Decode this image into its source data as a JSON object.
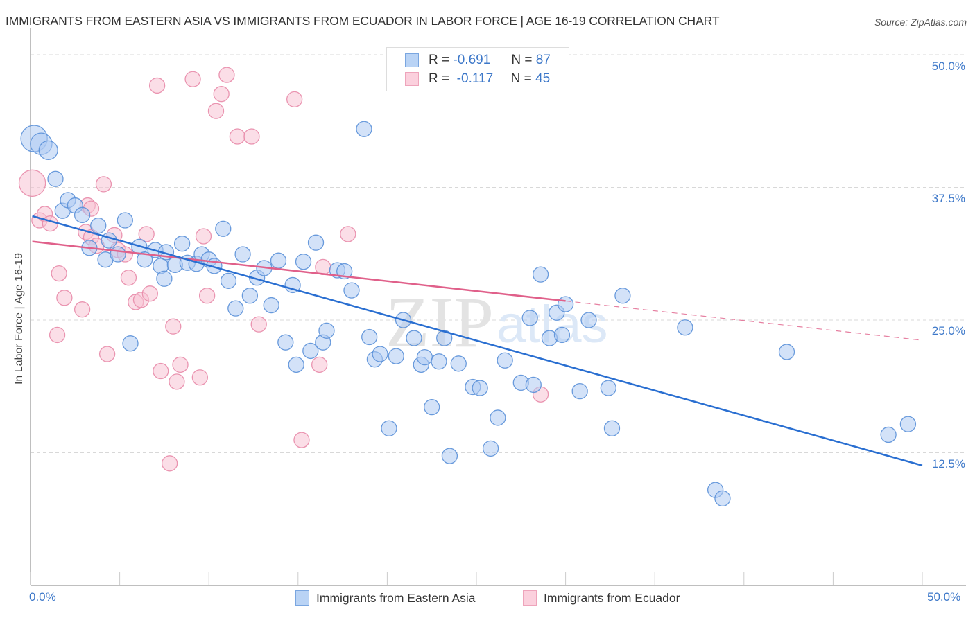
{
  "header": {
    "title": "IMMIGRANTS FROM EASTERN ASIA VS IMMIGRANTS FROM ECUADOR IN LABOR FORCE | AGE 16-19 CORRELATION CHART",
    "source": "Source: ZipAtlas.com"
  },
  "watermark": {
    "zip": "ZIP",
    "atlas": "atlas"
  },
  "colors": {
    "eastern_asia_fill": "#aecbf2",
    "eastern_asia_stroke": "#5a90d8",
    "eastern_asia_line": "#2a6fd1",
    "ecuador_fill": "#f8c3d3",
    "ecuador_stroke": "#e88aa8",
    "ecuador_line": "#e0608a",
    "tick_text": "#3d78c9"
  },
  "legend_top": {
    "rows": [
      {
        "r_label": "R =",
        "r_value": "-0.691",
        "n_label": "N =",
        "n_value": "87"
      },
      {
        "r_label": "R =",
        "r_value": "-0.117",
        "n_label": "N =",
        "n_value": "45"
      }
    ]
  },
  "chart_data": {
    "type": "scatter",
    "title": "IMMIGRANTS FROM EASTERN ASIA VS IMMIGRANTS FROM ECUADOR IN LABOR FORCE | AGE 16-19 CORRELATION CHART",
    "xlabel": "",
    "ylabel": "In Labor Force | Age 16-19",
    "xlim": [
      0,
      50
    ],
    "ylim": [
      0,
      50
    ],
    "x_tick_labels": [
      "0.0%",
      "50.0%"
    ],
    "y_ticks": [
      12.5,
      25.0,
      37.5,
      50.0
    ],
    "y_tick_labels": [
      "12.5%",
      "25.0%",
      "37.5%",
      "50.0%"
    ],
    "grid": "horizontal dashed",
    "legend": "bottom-center",
    "series": [
      {
        "name": "Immigrants from Eastern Asia",
        "R": -0.691,
        "N": 87,
        "trend": {
          "x0": 0.1,
          "y0": 34.8,
          "x1": 50.0,
          "y1": 11.3,
          "dashed_from": null
        },
        "points": [
          [
            0.2,
            42.1,
            3
          ],
          [
            0.6,
            41.6,
            2
          ],
          [
            1.0,
            41.0,
            1.5
          ],
          [
            1.4,
            38.3,
            1
          ],
          [
            1.8,
            35.3,
            1
          ],
          [
            2.1,
            36.3,
            1
          ],
          [
            2.5,
            35.8,
            1
          ],
          [
            2.9,
            34.9,
            1
          ],
          [
            3.3,
            31.8,
            1
          ],
          [
            3.8,
            33.9,
            1
          ],
          [
            4.2,
            30.7,
            1
          ],
          [
            4.4,
            32.5,
            1
          ],
          [
            4.9,
            31.2,
            1
          ],
          [
            5.3,
            34.4,
            1
          ],
          [
            5.6,
            22.8,
            1
          ],
          [
            6.1,
            31.9,
            1
          ],
          [
            6.4,
            30.7,
            1
          ],
          [
            7.0,
            31.6,
            1
          ],
          [
            7.3,
            30.1,
            1
          ],
          [
            7.6,
            31.4,
            1
          ],
          [
            7.5,
            28.9,
            1
          ],
          [
            8.1,
            30.2,
            1
          ],
          [
            8.5,
            32.2,
            1
          ],
          [
            8.8,
            30.4,
            1
          ],
          [
            9.3,
            30.3,
            1
          ],
          [
            9.6,
            31.2,
            1
          ],
          [
            10.0,
            30.7,
            1
          ],
          [
            10.3,
            30.1,
            1
          ],
          [
            10.8,
            33.6,
            1
          ],
          [
            11.1,
            28.7,
            1
          ],
          [
            11.5,
            26.1,
            1
          ],
          [
            11.9,
            31.2,
            1
          ],
          [
            12.3,
            27.3,
            1
          ],
          [
            12.7,
            29.0,
            1
          ],
          [
            13.1,
            29.9,
            1
          ],
          [
            13.5,
            26.4,
            1
          ],
          [
            13.9,
            30.6,
            1
          ],
          [
            14.3,
            22.9,
            1
          ],
          [
            14.7,
            28.3,
            1
          ],
          [
            14.9,
            20.8,
            1
          ],
          [
            15.3,
            30.5,
            1
          ],
          [
            15.7,
            22.1,
            1
          ],
          [
            16.0,
            32.3,
            1
          ],
          [
            16.4,
            22.9,
            1
          ],
          [
            16.6,
            24.0,
            1
          ],
          [
            17.2,
            29.7,
            1
          ],
          [
            17.6,
            29.6,
            1
          ],
          [
            18.0,
            27.8,
            1
          ],
          [
            18.7,
            43.0,
            1
          ],
          [
            19.0,
            23.4,
            1
          ],
          [
            19.3,
            21.3,
            1
          ],
          [
            19.6,
            21.8,
            1
          ],
          [
            20.1,
            14.8,
            1
          ],
          [
            20.5,
            21.6,
            1
          ],
          [
            20.9,
            25.0,
            1
          ],
          [
            21.5,
            23.3,
            1
          ],
          [
            21.9,
            20.8,
            1
          ],
          [
            22.1,
            21.5,
            1
          ],
          [
            22.5,
            16.8,
            1
          ],
          [
            22.9,
            21.1,
            1
          ],
          [
            23.2,
            23.3,
            1
          ],
          [
            23.5,
            12.2,
            1
          ],
          [
            24.0,
            20.9,
            1
          ],
          [
            24.8,
            18.7,
            1
          ],
          [
            25.2,
            18.6,
            1
          ],
          [
            25.8,
            12.9,
            1
          ],
          [
            26.2,
            15.8,
            1
          ],
          [
            26.6,
            21.2,
            1
          ],
          [
            27.5,
            19.1,
            1
          ],
          [
            28.0,
            25.2,
            1
          ],
          [
            28.2,
            18.9,
            1
          ],
          [
            28.6,
            29.3,
            1
          ],
          [
            29.1,
            23.3,
            1
          ],
          [
            29.5,
            25.7,
            1
          ],
          [
            29.8,
            23.6,
            1
          ],
          [
            30.0,
            26.5,
            1
          ],
          [
            30.8,
            18.3,
            1
          ],
          [
            31.3,
            25.0,
            1
          ],
          [
            32.4,
            18.6,
            1
          ],
          [
            32.6,
            14.8,
            1
          ],
          [
            33.2,
            27.3,
            1
          ],
          [
            36.7,
            24.3,
            1
          ],
          [
            38.4,
            9.0,
            1
          ],
          [
            38.8,
            8.2,
            1
          ],
          [
            42.4,
            22.0,
            1
          ],
          [
            48.1,
            14.2,
            1
          ],
          [
            49.2,
            15.2,
            1
          ]
        ]
      },
      {
        "name": "Immigrants from Ecuador",
        "R": -0.117,
        "N": 45,
        "trend": {
          "x0": 0.1,
          "y0": 32.4,
          "x1": 30.0,
          "y1": 26.8,
          "dashed_to_x": 50.0,
          "dashed_to_y": 23.1
        },
        "points": [
          [
            0.1,
            37.9,
            3
          ],
          [
            0.5,
            34.4,
            1
          ],
          [
            0.8,
            35.0,
            1
          ],
          [
            1.1,
            34.1,
            1
          ],
          [
            1.6,
            29.4,
            1
          ],
          [
            1.9,
            27.1,
            1
          ],
          [
            1.5,
            23.6,
            1
          ],
          [
            2.9,
            26.0,
            1
          ],
          [
            3.1,
            33.3,
            1
          ],
          [
            3.4,
            32.8,
            1
          ],
          [
            3.7,
            32.0,
            1
          ],
          [
            4.1,
            37.8,
            1
          ],
          [
            3.2,
            35.8,
            1
          ],
          [
            3.4,
            35.5,
            1
          ],
          [
            4.3,
            21.8,
            1
          ],
          [
            4.7,
            33.0,
            1
          ],
          [
            4.9,
            31.6,
            1
          ],
          [
            5.3,
            31.2,
            1
          ],
          [
            5.5,
            29.0,
            1
          ],
          [
            5.9,
            26.7,
            1
          ],
          [
            6.2,
            26.9,
            1
          ],
          [
            6.5,
            33.1,
            1
          ],
          [
            6.7,
            27.5,
            1
          ],
          [
            7.1,
            47.1,
            1
          ],
          [
            7.3,
            20.2,
            1
          ],
          [
            7.8,
            11.5,
            1
          ],
          [
            8.0,
            24.4,
            1
          ],
          [
            8.2,
            19.2,
            1
          ],
          [
            8.4,
            20.8,
            1
          ],
          [
            9.1,
            47.7,
            1
          ],
          [
            9.5,
            19.6,
            1
          ],
          [
            9.7,
            32.9,
            1
          ],
          [
            9.9,
            27.3,
            1
          ],
          [
            10.4,
            44.7,
            1
          ],
          [
            10.7,
            46.3,
            1
          ],
          [
            11.0,
            48.1,
            1
          ],
          [
            11.6,
            42.3,
            1
          ],
          [
            12.4,
            42.3,
            1
          ],
          [
            12.8,
            24.6,
            1
          ],
          [
            14.8,
            45.8,
            1
          ],
          [
            15.2,
            13.7,
            1
          ],
          [
            16.2,
            20.8,
            1
          ],
          [
            16.4,
            30.0,
            1
          ],
          [
            17.8,
            33.1,
            1
          ],
          [
            28.6,
            18.0,
            1
          ]
        ]
      }
    ]
  },
  "legend_bottom": {
    "items": [
      {
        "label": "Immigrants from Eastern Asia"
      },
      {
        "label": "Immigrants from Ecuador"
      }
    ]
  }
}
